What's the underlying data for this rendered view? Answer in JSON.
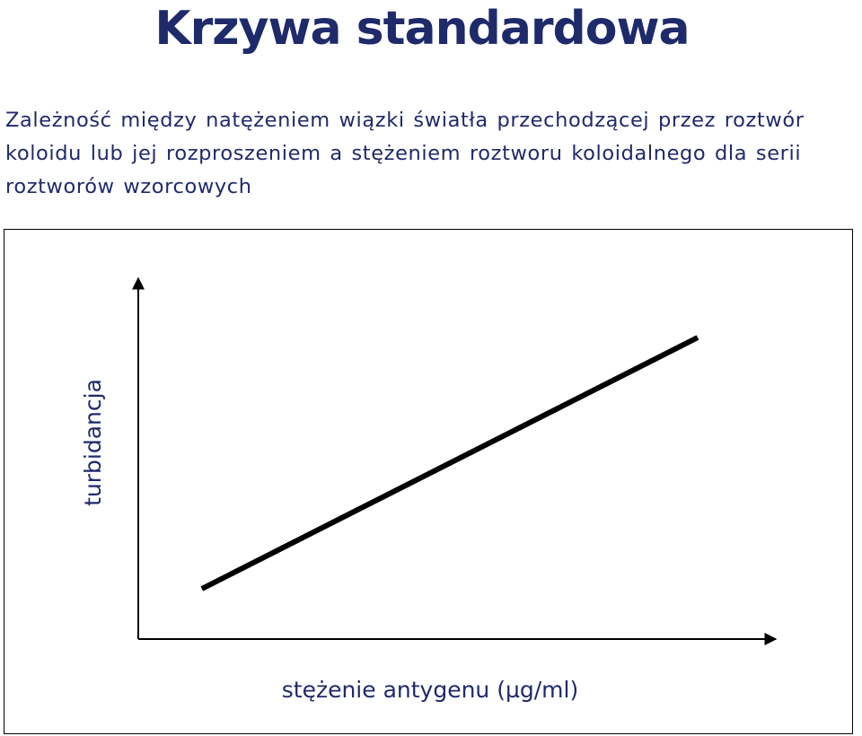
{
  "slide": {
    "title": "Krzywa standardowa",
    "description": "Zależność między natężeniem wiązki światła przechodzącej przez roztwór koloidu lub jej rozproszeniem a stężeniem roztworu koloidalnego dla serii roztworów wzorcowych"
  },
  "colors": {
    "title": "#1f2a6b",
    "text": "#1f2a6b",
    "line": "#000000",
    "axis": "#000000"
  },
  "chart_data": {
    "type": "line",
    "title": "",
    "xlabel": "stężenie antygenu (µg/ml)",
    "ylabel": "turbidancja",
    "xlim": [
      0,
      1
    ],
    "ylim": [
      0,
      1
    ],
    "grid": false,
    "legend": "none",
    "x_ticks": [],
    "y_ticks": [],
    "series": [
      {
        "x": [
          0.1,
          0.88
        ],
        "y": [
          0.14,
          0.84
        ]
      }
    ]
  }
}
